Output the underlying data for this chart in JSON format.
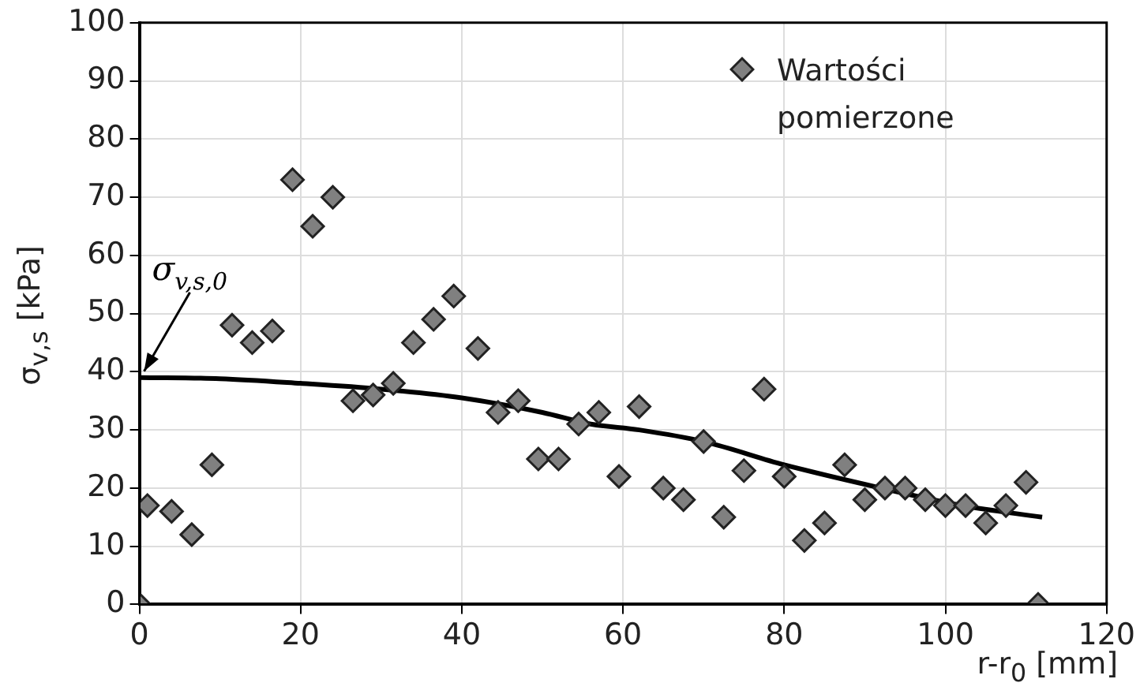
{
  "chart_data": {
    "type": "scatter",
    "xlabel": "r-r$_{0}$ [mm]",
    "ylabel": "σ$_{v,s}$ [kPa]",
    "xlim": [
      0,
      120
    ],
    "xticks": [
      0,
      20,
      40,
      60,
      80,
      100,
      120
    ],
    "ylim": [
      0,
      100
    ],
    "yticks": [
      0,
      10,
      20,
      30,
      40,
      50,
      60,
      70,
      80,
      90,
      100
    ],
    "grid": true,
    "legend": "top right",
    "series": [
      {
        "name": "Wartości pomierzone",
        "marker": "diamond",
        "color": "#808080",
        "x": [
          0,
          1,
          4,
          6.5,
          9,
          11.5,
          14,
          16.5,
          19,
          21.5,
          24,
          26.5,
          29,
          31.5,
          34,
          36.5,
          39,
          42,
          44.5,
          47,
          49.5,
          52,
          54.5,
          57,
          59.5,
          62,
          65,
          67.5,
          70,
          72.5,
          75,
          77.5,
          80,
          82.5,
          85,
          87.5,
          90,
          92.5,
          95,
          97.5,
          100,
          102.5,
          105,
          107.5,
          110,
          111.5
        ],
        "values": [
          0,
          17,
          16,
          12,
          24,
          48,
          45,
          47,
          73,
          65,
          70,
          35,
          36,
          38,
          45,
          49,
          53,
          44,
          33,
          35,
          25,
          25,
          31,
          33,
          22,
          34,
          20,
          18,
          28,
          15,
          23,
          37,
          22,
          11,
          14,
          24,
          18,
          20,
          20,
          18,
          17,
          17,
          14,
          17,
          21,
          0
        ]
      },
      {
        "type": "line",
        "marker": "none",
        "color": "#000000",
        "x": [
          0,
          10,
          20,
          30,
          40,
          50,
          56,
          62,
          70,
          80,
          92,
          102,
          112
        ],
        "values": [
          39,
          38.8,
          38,
          37,
          35.5,
          33,
          31,
          30,
          28,
          24,
          20,
          17,
          15
        ]
      }
    ],
    "annotations": [
      {
        "text": "σ$_{v,s,0}$",
        "x": 0,
        "y": 39
      }
    ]
  }
}
